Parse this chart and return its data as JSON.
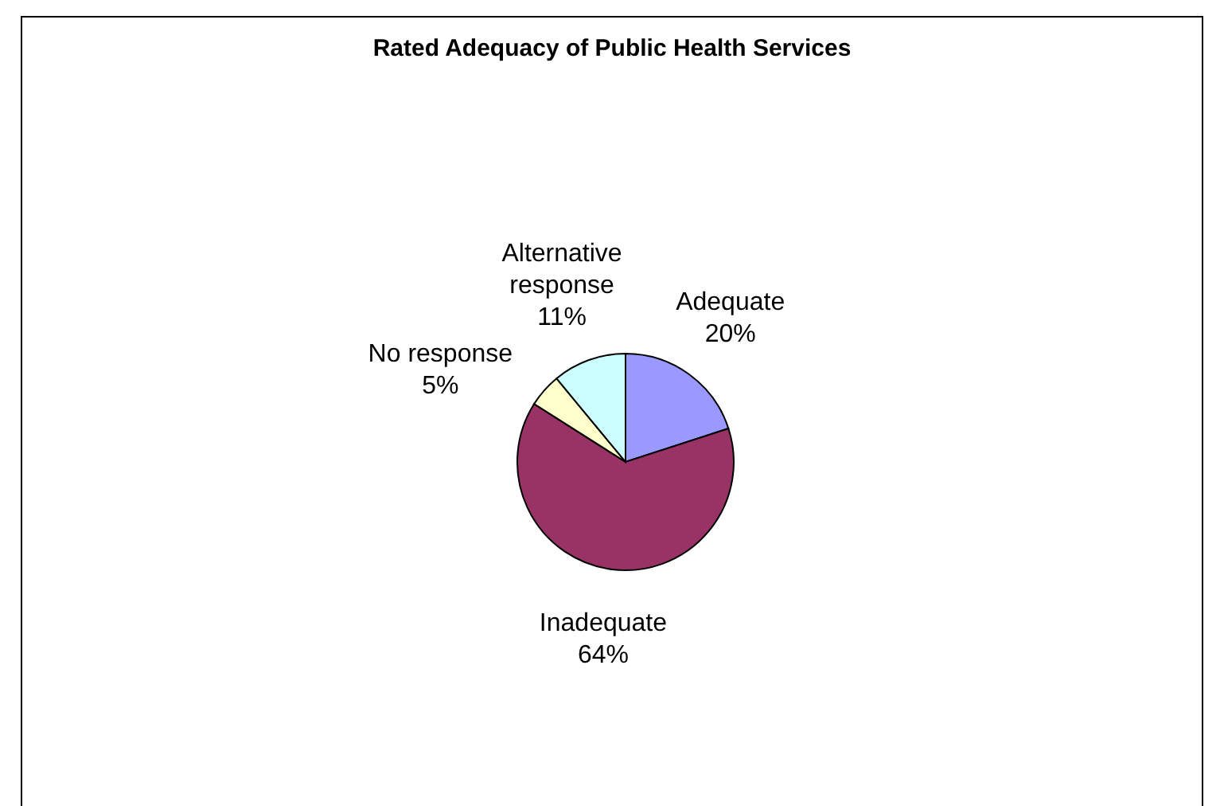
{
  "chart_data": {
    "type": "pie",
    "title": "Rated Adequacy of Public Health Services",
    "categories": [
      "Adequate",
      "Inadequate",
      "No response",
      "Alternative response"
    ],
    "values": [
      20,
      64,
      5,
      11
    ],
    "value_labels": [
      "20%",
      "64%",
      "5%",
      "11%"
    ],
    "colors": [
      "#9999ff",
      "#993366",
      "#ffffcc",
      "#ccffff"
    ]
  }
}
